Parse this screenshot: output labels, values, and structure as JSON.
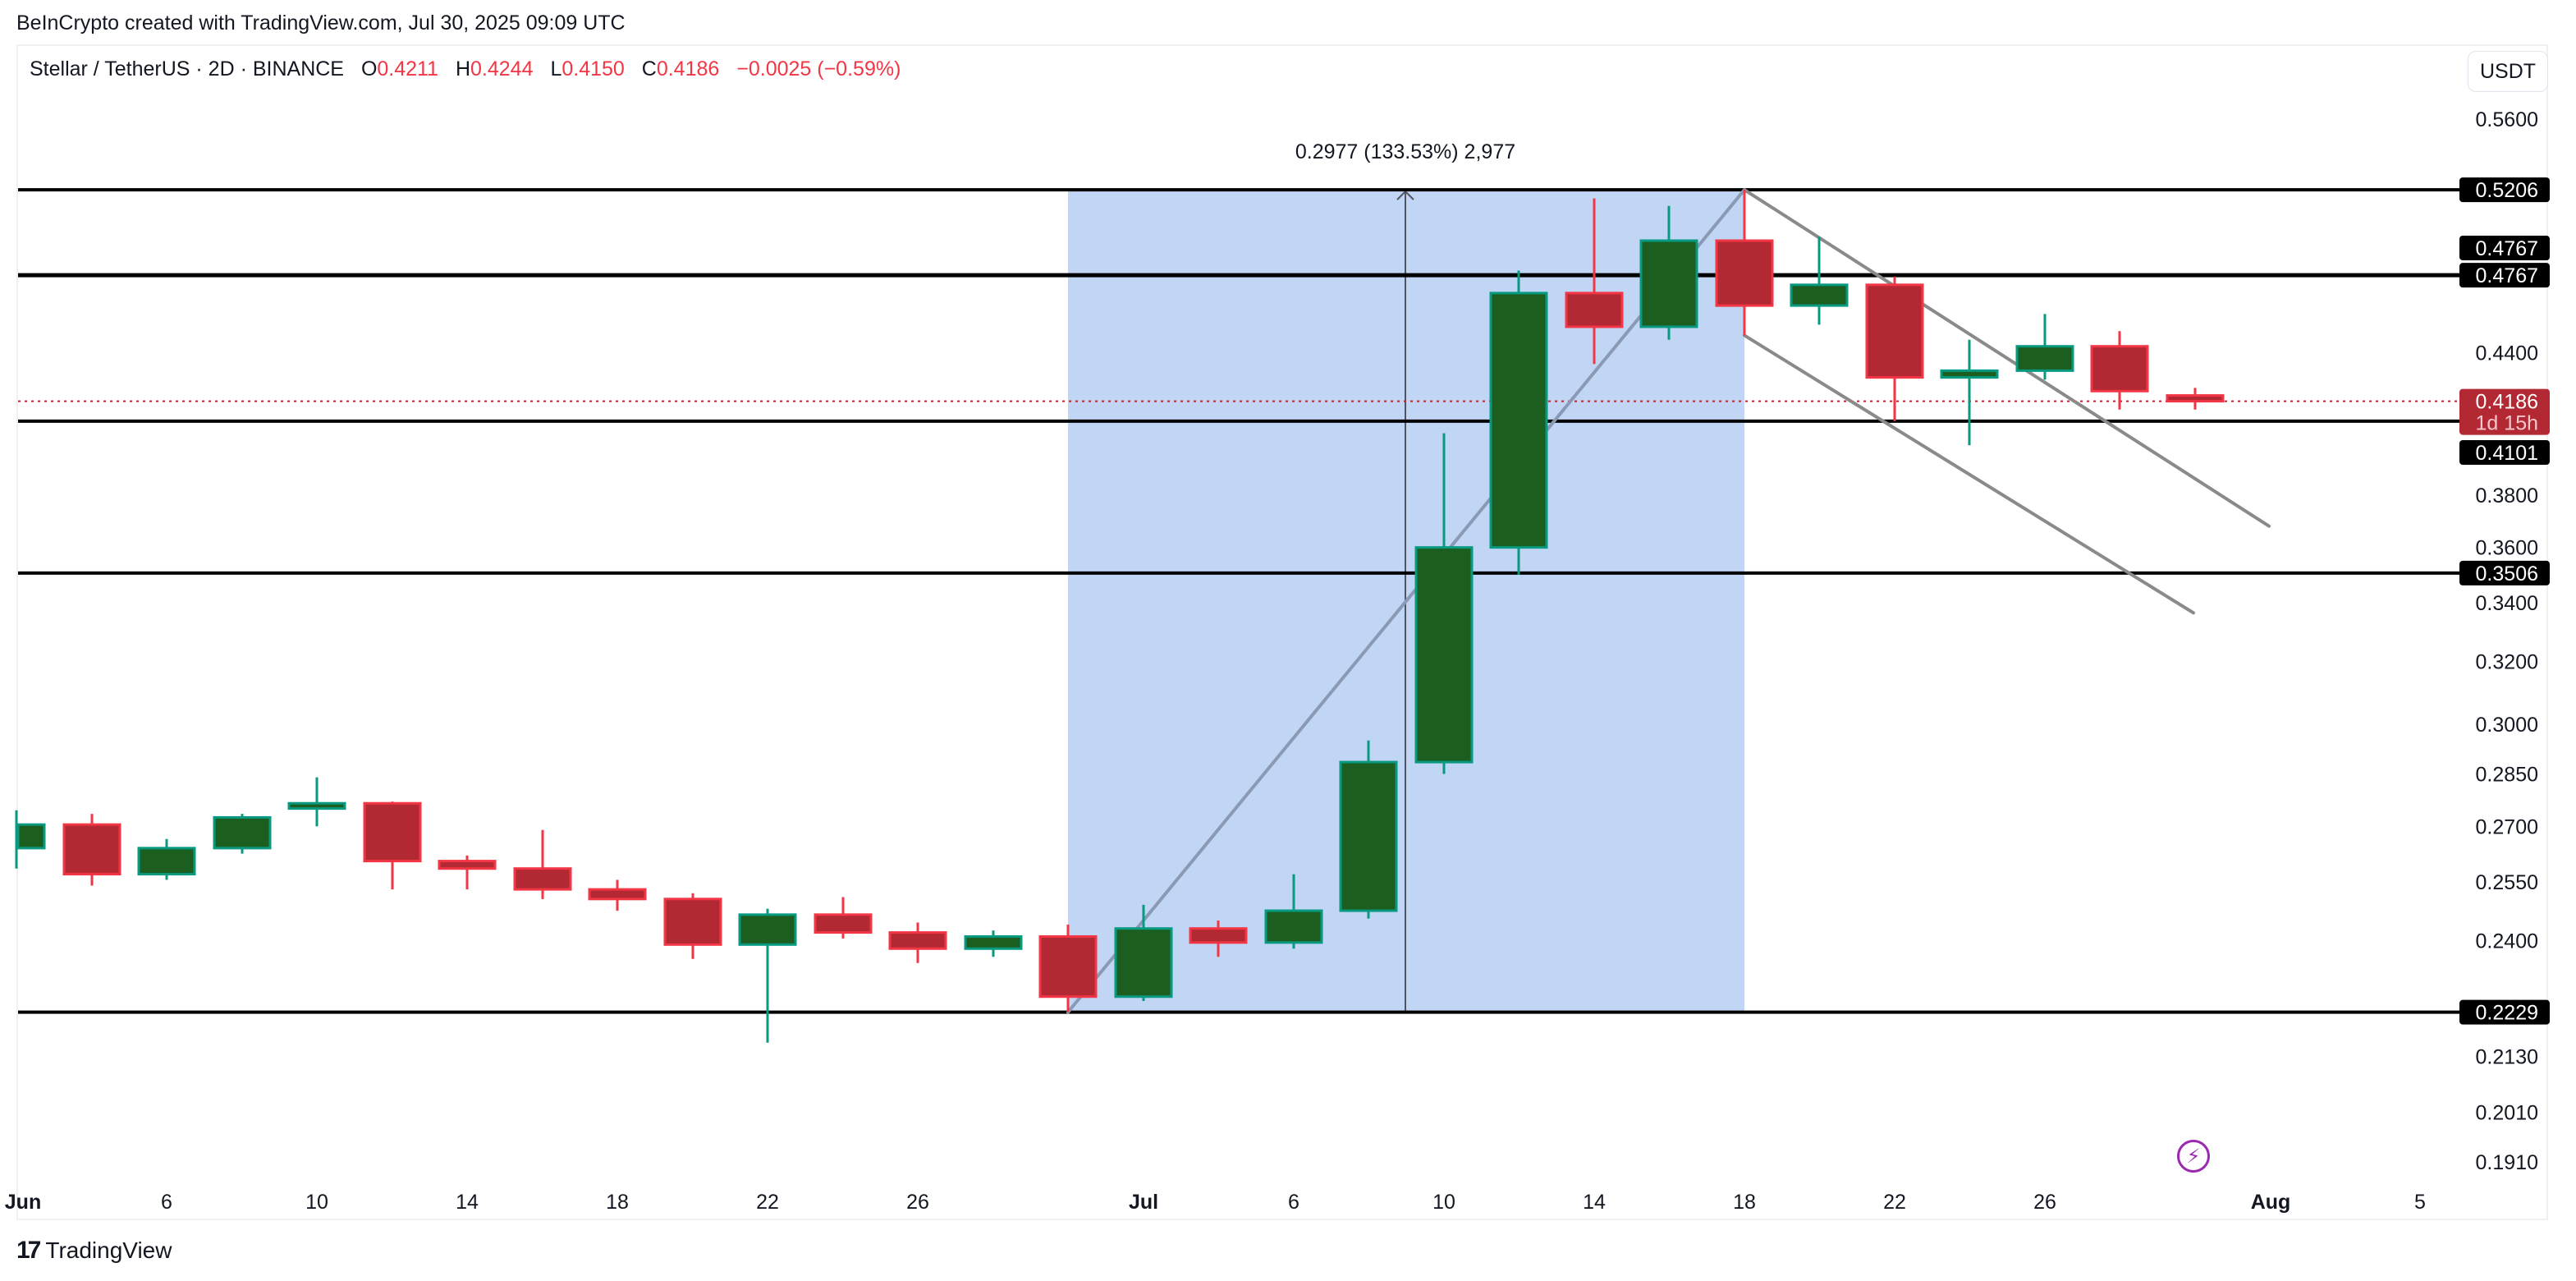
{
  "header": {
    "credit": "BeInCrypto created with TradingView.com, Jul 30, 2025 09:09 UTC"
  },
  "legend": {
    "symbol": "Stellar / TetherUS · 2D · BINANCE",
    "open_label": "O",
    "open": "0.4211",
    "high_label": "H",
    "high": "0.4244",
    "low_label": "L",
    "low": "0.4150",
    "close_label": "C",
    "close": "0.4186",
    "change": "−0.0025 (−0.59%)"
  },
  "currency_button": "USDT",
  "footer": {
    "brand": "TradingView",
    "brand_mark": "17"
  },
  "colors": {
    "up_fill": "#1b5e20",
    "up_border": "#089981",
    "down_fill": "#b22833",
    "down_border": "#f23645",
    "range_fill": "#c1d5f5",
    "level_line": "#000000",
    "trendline": "#8a8a8a",
    "last_price": "#b22833"
  },
  "chart_data": {
    "type": "candlestick",
    "title": "Stellar / TetherUS · 2D · BINANCE",
    "scale": "log",
    "ylabel": "USDT",
    "ylim": [
      0.185,
      0.58
    ],
    "y_ticks": [
      "0.5600",
      "0.4400",
      "0.3800",
      "0.3600",
      "0.3400",
      "0.3200",
      "0.3000",
      "0.2850",
      "0.2700",
      "0.2550",
      "0.2400",
      "0.2130",
      "0.2010",
      "0.1910"
    ],
    "x_ticks": [
      {
        "label": "Jun",
        "x": 28
      },
      {
        "label": "6",
        "x": 203
      },
      {
        "label": "10",
        "x": 386
      },
      {
        "label": "14",
        "x": 569
      },
      {
        "label": "18",
        "x": 752
      },
      {
        "label": "22",
        "x": 935
      },
      {
        "label": "26",
        "x": 1118
      },
      {
        "label": "Jul",
        "x": 1393
      },
      {
        "label": "6",
        "x": 1576
      },
      {
        "label": "10",
        "x": 1759
      },
      {
        "label": "14",
        "x": 1942
      },
      {
        "label": "18",
        "x": 2125
      },
      {
        "label": "22",
        "x": 2308
      },
      {
        "label": "26",
        "x": 2491
      },
      {
        "label": "Aug",
        "x": 2766
      },
      {
        "label": "5",
        "x": 2948
      }
    ],
    "candles": [
      {
        "date": "Jun 2",
        "x": 20,
        "o": 0.264,
        "h": 0.2745,
        "l": 0.2585,
        "c": 0.2705
      },
      {
        "date": "Jun 4",
        "x": 112,
        "o": 0.2705,
        "h": 0.2735,
        "l": 0.254,
        "c": 0.257
      },
      {
        "date": "Jun 6",
        "x": 203,
        "o": 0.257,
        "h": 0.2665,
        "l": 0.2555,
        "c": 0.264
      },
      {
        "date": "Jun 8",
        "x": 295,
        "o": 0.264,
        "h": 0.2735,
        "l": 0.2625,
        "c": 0.2725
      },
      {
        "date": "Jun 10",
        "x": 386,
        "o": 0.275,
        "h": 0.284,
        "l": 0.27,
        "c": 0.2765
      },
      {
        "date": "Jun 12",
        "x": 478,
        "o": 0.2765,
        "h": 0.277,
        "l": 0.253,
        "c": 0.2605
      },
      {
        "date": "Jun 14",
        "x": 569,
        "o": 0.2605,
        "h": 0.262,
        "l": 0.253,
        "c": 0.2585
      },
      {
        "date": "Jun 16",
        "x": 661,
        "o": 0.2585,
        "h": 0.269,
        "l": 0.2505,
        "c": 0.253
      },
      {
        "date": "Jun 18",
        "x": 752,
        "o": 0.253,
        "h": 0.2555,
        "l": 0.2475,
        "c": 0.2505
      },
      {
        "date": "Jun 20",
        "x": 844,
        "o": 0.2505,
        "h": 0.252,
        "l": 0.2355,
        "c": 0.239
      },
      {
        "date": "Jun 22",
        "x": 935,
        "o": 0.239,
        "h": 0.248,
        "l": 0.216,
        "c": 0.2465
      },
      {
        "date": "Jun 24",
        "x": 1027,
        "o": 0.2465,
        "h": 0.251,
        "l": 0.2405,
        "c": 0.242
      },
      {
        "date": "Jun 26",
        "x": 1118,
        "o": 0.242,
        "h": 0.2445,
        "l": 0.2345,
        "c": 0.238
      },
      {
        "date": "Jun 28",
        "x": 1210,
        "o": 0.238,
        "h": 0.2425,
        "l": 0.236,
        "c": 0.241
      },
      {
        "date": "Jun 30",
        "x": 1301,
        "o": 0.241,
        "h": 0.244,
        "l": 0.2229,
        "c": 0.2265
      },
      {
        "date": "Jul 2",
        "x": 1393,
        "o": 0.2265,
        "h": 0.249,
        "l": 0.2255,
        "c": 0.243
      },
      {
        "date": "Jul 4",
        "x": 1484,
        "o": 0.243,
        "h": 0.245,
        "l": 0.236,
        "c": 0.2395
      },
      {
        "date": "Jul 6",
        "x": 1576,
        "o": 0.2395,
        "h": 0.257,
        "l": 0.238,
        "c": 0.2475
      },
      {
        "date": "Jul 8",
        "x": 1667,
        "o": 0.2475,
        "h": 0.295,
        "l": 0.2455,
        "c": 0.2885
      },
      {
        "date": "Jul 10",
        "x": 1759,
        "o": 0.2885,
        "h": 0.405,
        "l": 0.285,
        "c": 0.36
      },
      {
        "date": "Jul 12",
        "x": 1850,
        "o": 0.36,
        "h": 0.479,
        "l": 0.35,
        "c": 0.468
      },
      {
        "date": "Jul 14",
        "x": 1942,
        "o": 0.468,
        "h": 0.516,
        "l": 0.435,
        "c": 0.452
      },
      {
        "date": "Jul 16",
        "x": 2033,
        "o": 0.452,
        "h": 0.512,
        "l": 0.446,
        "c": 0.494
      },
      {
        "date": "Jul 18",
        "x": 2125,
        "o": 0.494,
        "h": 0.5206,
        "l": 0.448,
        "c": 0.462
      },
      {
        "date": "Jul 20",
        "x": 2216,
        "o": 0.462,
        "h": 0.496,
        "l": 0.453,
        "c": 0.472
      },
      {
        "date": "Jul 22",
        "x": 2308,
        "o": 0.472,
        "h": 0.476,
        "l": 0.4101,
        "c": 0.429
      },
      {
        "date": "Jul 24",
        "x": 2399,
        "o": 0.429,
        "h": 0.446,
        "l": 0.4,
        "c": 0.432
      },
      {
        "date": "Jul 26",
        "x": 2491,
        "o": 0.432,
        "h": 0.458,
        "l": 0.428,
        "c": 0.443
      },
      {
        "date": "Jul 28",
        "x": 2582,
        "o": 0.443,
        "h": 0.45,
        "l": 0.415,
        "c": 0.423
      },
      {
        "date": "Jul 30",
        "x": 2674,
        "o": 0.4211,
        "h": 0.4244,
        "l": 0.415,
        "c": 0.4186
      }
    ],
    "horizontal_levels": [
      {
        "price": 0.5206,
        "label": "0.5206"
      },
      {
        "price": 0.4767,
        "label": "0.4767",
        "thick": true
      },
      {
        "price": 0.4101,
        "label": "0.4101"
      },
      {
        "price": 0.3506,
        "label": "0.3506"
      },
      {
        "price": 0.2229,
        "label": "0.2229"
      }
    ],
    "extra_axis_labels": [
      {
        "label": "0.4767",
        "y": 302
      }
    ],
    "last_price": {
      "price": 0.4186,
      "label": "0.4186",
      "countdown": "1d 15h"
    },
    "price_range_measure": {
      "x1": 1301,
      "x2": 2125,
      "from": 0.2229,
      "to": 0.5206,
      "label": "0.2977 (133.53%) 2,977"
    },
    "trendlines": [
      {
        "name": "rally-line",
        "x1": 1301,
        "p1": 0.2229,
        "x2": 2125,
        "p2": 0.5206
      },
      {
        "name": "channel-upper",
        "x1": 2125,
        "p1": 0.5206,
        "x2": 2764,
        "p2": 0.368
      },
      {
        "name": "channel-lower",
        "x1": 2125,
        "p1": 0.448,
        "x2": 2672,
        "p2": 0.3365
      }
    ]
  }
}
